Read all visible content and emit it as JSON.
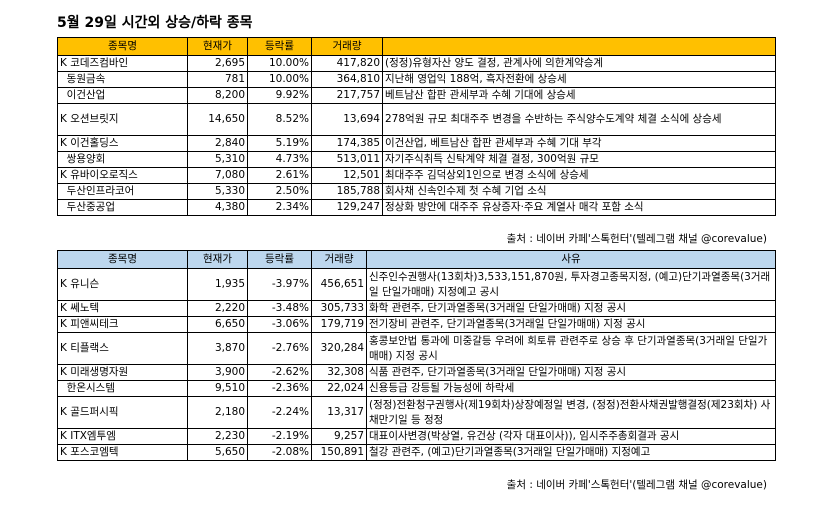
{
  "title": "5월 29일  시간외 상승/하락 종목",
  "headers": {
    "name": "종목명",
    "price": "현재가",
    "change": "등락률",
    "volume": "거래량",
    "reason": "사유"
  },
  "source": "출처 : 네이버 카페'스톡헌터'(텔레그램 채널 @corevalue)",
  "gainers": [
    {
      "name": "K 코데즈컴바인",
      "price": "2,695",
      "change": "10.00%",
      "volume": "417,820",
      "reason": "(정정)유형자산 양도 결정, 관계사에 의한계약승계"
    },
    {
      "name": "  동원금속",
      "price": "781",
      "change": "10.00%",
      "volume": "364,810",
      "reason": "지난해 영업익 188억, 흑자전환에 상승세"
    },
    {
      "name": "  이건산업",
      "price": "8,200",
      "change": "9.92%",
      "volume": "217,757",
      "reason": "베트남산 합판 관세부과 수혜 기대에 상승세"
    },
    {
      "name": "K 오션브릿지",
      "price": "14,650",
      "change": "8.52%",
      "volume": "13,694",
      "reason": "278억원 규모 최대주주 변경을 수반하는 주식양수도계약 체결 소식에 상승세"
    },
    {
      "name": "K 이건홀딩스",
      "price": "2,840",
      "change": "5.19%",
      "volume": "174,385",
      "reason": "이건산업, 베트남산 합판 관세부과 수혜 기대 부각"
    },
    {
      "name": "  쌍용양회",
      "price": "5,310",
      "change": "4.73%",
      "volume": "513,011",
      "reason": "자기주식취득 신탁계약 체결 결정, 300억원 규모"
    },
    {
      "name": "K 유바이오로직스",
      "price": "7,080",
      "change": "2.61%",
      "volume": "12,501",
      "reason": "최대주주 김덕상외1인으로 변경 소식에 상승세"
    },
    {
      "name": "  두산인프라코어",
      "price": "5,330",
      "change": "2.50%",
      "volume": "185,788",
      "reason": "회사채 신속인수제 첫 수혜 기업 소식"
    },
    {
      "name": "  두산중공업",
      "price": "4,380",
      "change": "2.34%",
      "volume": "129,247",
      "reason": "정상화 방안에 대주주 유상증자·주요 계열사 매각 포함 소식"
    }
  ],
  "losers": [
    {
      "name": "K 유니슨",
      "price": "1,935",
      "change": "-3.97%",
      "volume": "456,651",
      "reason": "신주인수권행사(13회차)3,533,151,870원, 투자경고종목지정, (예고)단기과열종목(3거래일 단일가매매) 지정예고 공시"
    },
    {
      "name": "K 쎄노텍",
      "price": "2,220",
      "change": "-3.48%",
      "volume": "305,733",
      "reason": "화학 관련주, 단기과열종목(3거래일 단일가매매) 지정 공시"
    },
    {
      "name": "K 피앤씨테크",
      "price": "6,650",
      "change": "-3.06%",
      "volume": "179,719",
      "reason": "전기장비 관련주, 단기과열종목(3거래일 단일가매매) 지정 공시"
    },
    {
      "name": "K 티플랙스",
      "price": "3,870",
      "change": "-2.76%",
      "volume": "320,284",
      "reason": "홍콩보안법 통과에 미중갈등 우려에 희토류 관련주로 상승 후 단기과열종목(3거래일 단일가매매) 지정 공시"
    },
    {
      "name": "K 미래생명자원",
      "price": "3,900",
      "change": "-2.62%",
      "volume": "32,308",
      "reason": "식품 관련주, 단기과열종목(3거래일 단일가매매) 지정 공시"
    },
    {
      "name": "  한온시스템",
      "price": "9,510",
      "change": "-2.36%",
      "volume": "22,024",
      "reason": "신용등급 강등될 가능성에 하락세"
    },
    {
      "name": "K 골드퍼시픽",
      "price": "2,180",
      "change": "-2.24%",
      "volume": "13,317",
      "reason": "(정정)전환청구권행사(제19회차)상장예정일 변경, (정정)전환사채권발행결정(제23회차) 사채만기일 등 정정"
    },
    {
      "name": "K ITX엠투엠",
      "price": "2,230",
      "change": "-2.19%",
      "volume": "9,257",
      "reason": "대표이사변경(박상열, 유건상 (각자 대표이사)), 임시주주총회결과 공시"
    },
    {
      "name": "K 포스코엠텍",
      "price": "5,650",
      "change": "-2.08%",
      "volume": "150,891",
      "reason": "철강 관련주, (예고)단기과열종목(3거래일 단일가매매) 지정예고"
    }
  ]
}
